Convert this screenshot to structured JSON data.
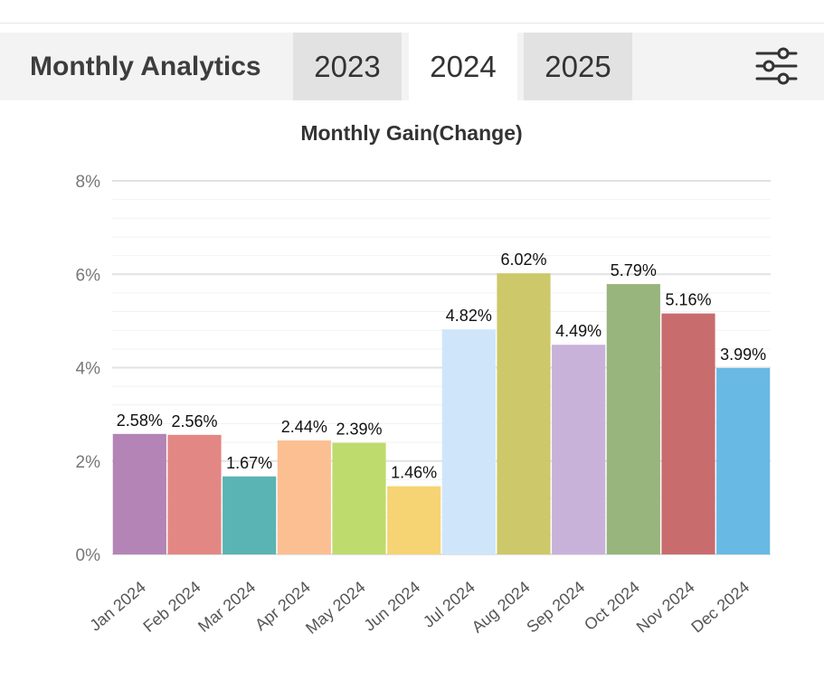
{
  "header": {
    "title": "Monthly Analytics",
    "tabs": [
      {
        "label": "2023",
        "active": false
      },
      {
        "label": "2024",
        "active": true
      },
      {
        "label": "2025",
        "active": false
      }
    ],
    "filter_icon": "sliders-icon"
  },
  "chart_data": {
    "type": "bar",
    "title": "Monthly Gain(Change)",
    "xlabel": "",
    "ylabel": "",
    "categories": [
      "Jan 2024",
      "Feb 2024",
      "Mar 2024",
      "Apr 2024",
      "May 2024",
      "Jun 2024",
      "Jul 2024",
      "Aug 2024",
      "Sep 2024",
      "Oct 2024",
      "Nov 2024",
      "Dec 2024"
    ],
    "values": [
      2.58,
      2.56,
      1.67,
      2.44,
      2.39,
      1.46,
      4.82,
      6.02,
      4.49,
      5.79,
      5.16,
      3.99
    ],
    "value_labels": [
      "2.58%",
      "2.56%",
      "1.67%",
      "2.44%",
      "2.39%",
      "1.46%",
      "4.82%",
      "6.02%",
      "4.49%",
      "5.79%",
      "5.16%",
      "3.99%"
    ],
    "colors": [
      "#b384b5",
      "#e38784",
      "#5ab4b3",
      "#fcbf92",
      "#bedb6e",
      "#f6d473",
      "#cfe6fa",
      "#cdc869",
      "#c8b2da",
      "#97b57c",
      "#c86c6e",
      "#68b9e3"
    ],
    "ylim": [
      0,
      8
    ],
    "y_ticks": [
      {
        "value": 0,
        "label": "0%"
      },
      {
        "value": 2,
        "label": "2%"
      },
      {
        "value": 4,
        "label": "4%"
      },
      {
        "value": 6,
        "label": "6%"
      },
      {
        "value": 8,
        "label": "8%"
      }
    ],
    "grid": true,
    "legend": "none"
  }
}
